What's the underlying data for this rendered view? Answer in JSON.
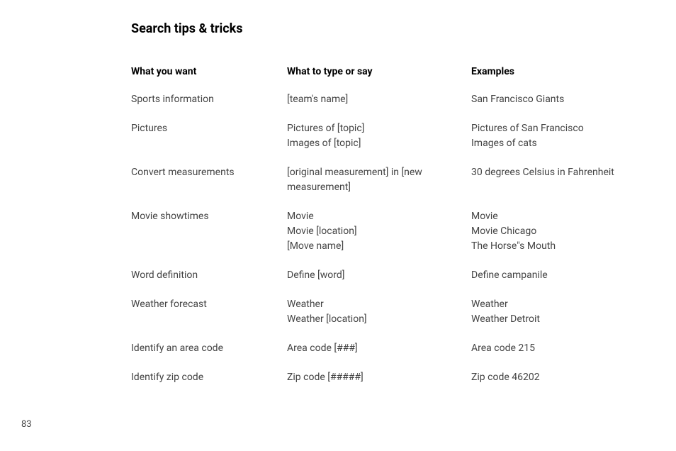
{
  "page": {
    "title": "Search tips & tricks",
    "page_number": "83"
  },
  "table": {
    "headers": {
      "col1": "What you want",
      "col2": "What to type or say",
      "col3": "Examples"
    },
    "rows": [
      {
        "want": [
          "Sports information"
        ],
        "type": [
          "[team's name]"
        ],
        "example": [
          "San Francisco Giants"
        ]
      },
      {
        "want": [
          "Pictures"
        ],
        "type": [
          "Pictures of [topic]",
          "Images of [topic]"
        ],
        "example": [
          "Pictures of San Francisco",
          "Images of cats"
        ]
      },
      {
        "want": [
          "Convert measurements"
        ],
        "type": [
          "[original measurement] in [new measurement]"
        ],
        "example": [
          "30 degrees Celsius in Fahrenheit"
        ]
      },
      {
        "want": [
          "Movie showtimes"
        ],
        "type": [
          "Movie",
          "Movie [location]",
          "[Move name]"
        ],
        "example": [
          "Movie",
          "Movie Chicago",
          "The Horse\"s Mouth"
        ]
      },
      {
        "want": [
          "Word definition"
        ],
        "type": [
          "Define [word]"
        ],
        "example": [
          "Define campanile"
        ]
      },
      {
        "want": [
          "Weather forecast"
        ],
        "type": [
          "Weather",
          "Weather [location]"
        ],
        "example": [
          "Weather",
          "Weather Detroit"
        ]
      },
      {
        "want": [
          "Identify an area code"
        ],
        "type": [
          "Area code [###]"
        ],
        "example": [
          "Area code 215"
        ]
      },
      {
        "want": [
          "Identify zip code"
        ],
        "type": [
          "Zip code [#####]"
        ],
        "example": [
          "Zip code 46202"
        ]
      }
    ]
  }
}
